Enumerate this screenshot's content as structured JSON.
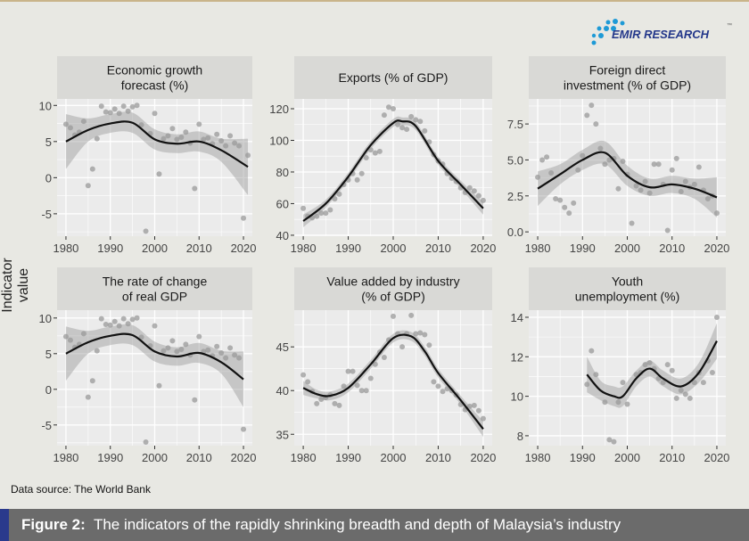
{
  "logo": {
    "text": "EMIR RESEARCH",
    "tm": "™",
    "colors": {
      "dots": "#1e9ad6",
      "text": "#23378a"
    }
  },
  "ylabel": "Indicator value",
  "source": "Data source: The World Bank",
  "footer": {
    "label": "Figure 2:",
    "text": "The indicators of the rapidly shrinking breadth and depth of Malaysia’s industry"
  },
  "chart_data": [
    {
      "type": "scatter",
      "title": [
        "Economic growth",
        "forecast (%)"
      ],
      "xlim": [
        1978,
        2022
      ],
      "ylim": [
        -8.1,
        10.9
      ],
      "xticks": [
        1980,
        1990,
        2000,
        2010,
        2020
      ],
      "yticks": [
        -5,
        0,
        5,
        10
      ],
      "yticklabels": [
        "-5",
        "0",
        "5",
        "10"
      ],
      "points": {
        "x": [
          1980,
          1981,
          1982,
          1983,
          1984,
          1985,
          1986,
          1987,
          1988,
          1989,
          1990,
          1991,
          1992,
          1993,
          1994,
          1995,
          1996,
          1997,
          1998,
          1999,
          2000,
          2001,
          2002,
          2003,
          2004,
          2005,
          2006,
          2007,
          2008,
          2009,
          2010,
          2011,
          2012,
          2013,
          2014,
          2015,
          2016,
          2017,
          2018,
          2019,
          2020,
          2021
        ],
        "y": [
          7.4,
          6.9,
          5.9,
          6.3,
          7.8,
          -1.1,
          1.2,
          5.4,
          9.9,
          9.1,
          9.0,
          9.5,
          8.9,
          9.9,
          9.2,
          9.8,
          10.0,
          7.3,
          -7.4,
          6.1,
          8.9,
          0.5,
          5.4,
          5.8,
          6.8,
          5.3,
          5.6,
          6.3,
          4.8,
          -1.5,
          7.4,
          5.3,
          5.5,
          4.7,
          6.0,
          5.1,
          4.4,
          5.8,
          4.8,
          4.4,
          -5.6,
          3.1
        ]
      },
      "smooth": {
        "x": [
          1980,
          1985,
          1990,
          1995,
          2000,
          2005,
          2010,
          2015,
          2021
        ],
        "y": [
          5.0,
          6.6,
          7.5,
          7.6,
          5.3,
          4.7,
          5.0,
          3.8,
          1.5
        ],
        "se": [
          3.8,
          1.6,
          1.3,
          1.4,
          1.4,
          1.3,
          1.4,
          1.6,
          3.9
        ]
      }
    },
    {
      "type": "scatter",
      "title": [
        "Exports (% of GDP)"
      ],
      "xlim": [
        1978,
        2022
      ],
      "ylim": [
        39.4,
        126.2
      ],
      "xticks": [
        1980,
        1990,
        2000,
        2010,
        2020
      ],
      "yticks": [
        40,
        60,
        80,
        100,
        120
      ],
      "yticklabels": [
        "40",
        "60",
        "80",
        "100",
        "120"
      ],
      "points": {
        "x": [
          1980,
          1981,
          1982,
          1983,
          1984,
          1985,
          1986,
          1987,
          1988,
          1989,
          1990,
          1991,
          1992,
          1993,
          1994,
          1995,
          1996,
          1997,
          1998,
          1999,
          2000,
          2001,
          2002,
          2003,
          2004,
          2005,
          2006,
          2007,
          2008,
          2009,
          2010,
          2011,
          2012,
          2013,
          2014,
          2015,
          2016,
          2017,
          2018,
          2019,
          2020
        ],
        "y": [
          57,
          52,
          51,
          52,
          54,
          54,
          56,
          63,
          66,
          72,
          75,
          79,
          75,
          79,
          89,
          94,
          92,
          93,
          116,
          121,
          120,
          110,
          108,
          107,
          115,
          113,
          112,
          106,
          99,
          91,
          87,
          85,
          79,
          76,
          74,
          70,
          67,
          70,
          68,
          65,
          62
        ]
      },
      "smooth": {
        "x": [
          1980,
          1985,
          1990,
          1995,
          2000,
          2002,
          2005,
          2010,
          2015,
          2020
        ],
        "y": [
          49,
          60,
          77,
          97,
          111,
          112,
          109,
          87,
          72,
          57
        ],
        "se": [
          4,
          2.5,
          2.5,
          2.5,
          2.5,
          2.5,
          2.5,
          2.5,
          2.5,
          4
        ]
      }
    },
    {
      "type": "scatter",
      "title": [
        "Foreign direct",
        "investment (% of GDP)"
      ],
      "xlim": [
        1978,
        2022
      ],
      "ylim": [
        -0.3,
        9.24
      ],
      "xticks": [
        1980,
        1990,
        2000,
        2010,
        2020
      ],
      "yticks": [
        0,
        2.5,
        5,
        7.5
      ],
      "yticklabels": [
        "0.0",
        "2.5",
        "5.0",
        "7.5"
      ],
      "points": {
        "x": [
          1980,
          1981,
          1982,
          1983,
          1984,
          1985,
          1986,
          1987,
          1988,
          1989,
          1990,
          1991,
          1992,
          1993,
          1994,
          1995,
          1996,
          1997,
          1998,
          1999,
          2000,
          2001,
          2002,
          2003,
          2004,
          2005,
          2006,
          2007,
          2008,
          2009,
          2010,
          2011,
          2012,
          2013,
          2014,
          2015,
          2016,
          2017,
          2018,
          2019,
          2020
        ],
        "y": [
          3.8,
          5.0,
          5.2,
          4.1,
          2.3,
          2.2,
          1.7,
          1.3,
          2.0,
          4.3,
          5.3,
          8.1,
          8.8,
          7.5,
          5.8,
          4.7,
          5.0,
          5.1,
          3.0,
          4.9,
          4.0,
          0.6,
          3.2,
          2.9,
          3.5,
          2.7,
          4.7,
          4.7,
          3.3,
          0.1,
          4.3,
          5.1,
          2.8,
          3.5,
          3.1,
          3.3,
          4.5,
          2.9,
          2.3,
          2.5,
          1.3
        ]
      },
      "smooth": {
        "x": [
          1980,
          1985,
          1990,
          1995,
          2000,
          2005,
          2010,
          2015,
          2020
        ],
        "y": [
          3.0,
          4.0,
          5.0,
          5.5,
          3.9,
          3.1,
          3.3,
          3.0,
          2.4
        ],
        "se": [
          1.2,
          0.7,
          0.7,
          0.8,
          0.7,
          0.6,
          0.6,
          0.7,
          1.4
        ]
      }
    },
    {
      "type": "scatter",
      "title": [
        "The rate of change",
        "of real GDP"
      ],
      "xlim": [
        1978,
        2022
      ],
      "ylim": [
        -7.9,
        11.1
      ],
      "xticks": [
        1980,
        1990,
        2000,
        2010,
        2020
      ],
      "yticks": [
        -5,
        0,
        5,
        10
      ],
      "yticklabels": [
        "-5",
        "0",
        "5",
        "10"
      ],
      "points": {
        "x": [
          1980,
          1981,
          1982,
          1983,
          1984,
          1985,
          1986,
          1987,
          1988,
          1989,
          1990,
          1991,
          1992,
          1993,
          1994,
          1995,
          1996,
          1997,
          1998,
          1999,
          2000,
          2001,
          2002,
          2003,
          2004,
          2005,
          2006,
          2007,
          2008,
          2009,
          2010,
          2011,
          2012,
          2013,
          2014,
          2015,
          2016,
          2017,
          2018,
          2019,
          2020
        ],
        "y": [
          7.4,
          6.9,
          5.9,
          6.3,
          7.8,
          -1.1,
          1.2,
          5.4,
          9.9,
          9.1,
          9.0,
          9.5,
          8.9,
          9.9,
          9.2,
          9.8,
          10.0,
          7.3,
          -7.4,
          6.1,
          8.9,
          0.5,
          5.4,
          5.8,
          6.8,
          5.3,
          5.6,
          6.3,
          4.8,
          -1.5,
          7.4,
          5.3,
          5.5,
          4.7,
          6.0,
          5.1,
          4.4,
          5.8,
          4.8,
          4.4,
          -5.6
        ]
      },
      "smooth": {
        "x": [
          1980,
          1985,
          1990,
          1995,
          2000,
          2005,
          2010,
          2015,
          2020
        ],
        "y": [
          5.0,
          6.6,
          7.5,
          7.6,
          5.3,
          4.6,
          5.1,
          3.8,
          1.4
        ],
        "se": [
          3.8,
          1.6,
          1.3,
          1.4,
          1.4,
          1.3,
          1.4,
          1.6,
          3.9
        ]
      }
    },
    {
      "type": "scatter",
      "title": [
        "Value added by industry",
        "(% of GDP)"
      ],
      "xlim": [
        1978,
        2022
      ],
      "ylim": [
        33.7,
        49.2
      ],
      "xticks": [
        1980,
        1990,
        2000,
        2010,
        2020
      ],
      "yticks": [
        35,
        40,
        45
      ],
      "yticklabels": [
        "35",
        "40",
        "45"
      ],
      "points": {
        "x": [
          1980,
          1981,
          1982,
          1983,
          1984,
          1985,
          1986,
          1987,
          1988,
          1989,
          1990,
          1991,
          1992,
          1993,
          1994,
          1995,
          1996,
          1997,
          1998,
          1999,
          2000,
          2001,
          2002,
          2003,
          2004,
          2005,
          2006,
          2007,
          2008,
          2009,
          2010,
          2011,
          2012,
          2013,
          2014,
          2015,
          2016,
          2017,
          2018,
          2019,
          2020
        ],
        "y": [
          41.8,
          41,
          39.9,
          38.5,
          39,
          39.2,
          39.5,
          38.5,
          38.3,
          40.5,
          42.2,
          42.2,
          40.6,
          40.0,
          40.0,
          41.4,
          43,
          44.4,
          43.8,
          45.8,
          48.5,
          46.5,
          45,
          46.5,
          48.6,
          46.5,
          46.6,
          46.4,
          45.2,
          41,
          40.5,
          39.9,
          40.2,
          40.0,
          39.5,
          38.4,
          37.8,
          38.2,
          38.3,
          37.7,
          36.8
        ]
      },
      "smooth": {
        "x": [
          1980,
          1983,
          1986,
          1990,
          1995,
          2000,
          2004,
          2007,
          2010,
          2015,
          2020
        ],
        "y": [
          40.3,
          39.6,
          39.4,
          40.3,
          43,
          46,
          46.2,
          44.5,
          42,
          38.9,
          35.6
        ],
        "se": [
          0.8,
          0.5,
          0.5,
          0.5,
          0.5,
          0.5,
          0.5,
          0.5,
          0.5,
          0.5,
          0.9
        ]
      }
    },
    {
      "type": "scatter",
      "title": [
        "Youth",
        "unemployment (%)"
      ],
      "xlim": [
        1978,
        2022
      ],
      "ylim": [
        7.5,
        14.36
      ],
      "xticks": [
        1980,
        1990,
        2000,
        2010,
        2020
      ],
      "yticks": [
        8,
        10,
        12,
        14
      ],
      "yticklabels": [
        "8",
        "10",
        "12",
        "14"
      ],
      "points": {
        "x": [
          1991,
          1992,
          1993,
          1995,
          1996,
          1997,
          1998,
          1999,
          2000,
          2002,
          2003,
          2004,
          2005,
          2006,
          2007,
          2008,
          2009,
          2010,
          2011,
          2012,
          2013,
          2014,
          2015,
          2016,
          2017,
          2018,
          2019,
          2020
        ],
        "y": [
          10.6,
          12.3,
          11.1,
          9.7,
          7.8,
          7.7,
          9.7,
          10.7,
          9.6,
          11.1,
          11.2,
          11.6,
          11.7,
          11.4,
          10.9,
          10.7,
          11.6,
          11.3,
          9.9,
          10.3,
          10.1,
          9.9,
          10.7,
          11.2,
          10.7,
          11.8,
          11.2,
          14.0
        ]
      },
      "smooth": {
        "x": [
          1991,
          1994,
          1997,
          1999,
          2002,
          2005,
          2008,
          2012,
          2016,
          2020
        ],
        "y": [
          11.1,
          10.3,
          10.0,
          10.0,
          10.9,
          11.4,
          10.9,
          10.5,
          11.2,
          12.8
        ],
        "se": [
          0.9,
          0.5,
          0.5,
          0.5,
          0.4,
          0.4,
          0.4,
          0.4,
          0.5,
          0.9
        ]
      }
    }
  ]
}
